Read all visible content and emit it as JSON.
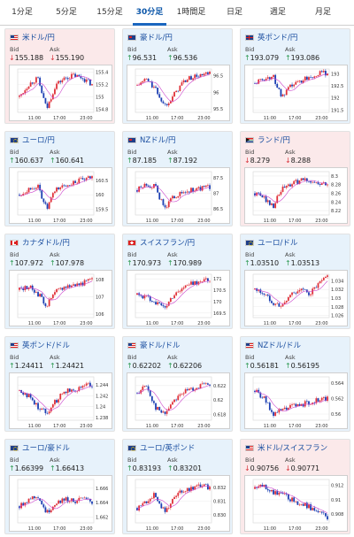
{
  "tabs": [
    {
      "label": "1分足",
      "active": false
    },
    {
      "label": "5分足",
      "active": false
    },
    {
      "label": "15分足",
      "active": false
    },
    {
      "label": "30分足",
      "active": true
    },
    {
      "label": "1時間足",
      "active": false
    },
    {
      "label": "日足",
      "active": false
    },
    {
      "label": "週足",
      "active": false
    },
    {
      "label": "月足",
      "active": false
    }
  ],
  "common": {
    "bid_label": "Bid",
    "ask_label": "Ask",
    "x_ticks": [
      "11:00",
      "17:00",
      "23:00"
    ]
  },
  "colors": {
    "up_bg": "#e7f2fb",
    "down_bg": "#fbe9ea",
    "up_arrow": "#2e9a52",
    "down_arrow": "#d9363e",
    "candle_up": "#e0313a",
    "candle_down": "#1c3fb3",
    "ma_line": "#cc44cc"
  },
  "cards": [
    {
      "name": "米ドル/円",
      "flag": "us",
      "dir": "down",
      "bid": "155.188",
      "ask": "155.190",
      "y_ticks": [
        "155.4",
        "155.2",
        "155",
        "154.8"
      ],
      "y_range": [
        154.75,
        155.45
      ],
      "chart_data": {
        "type": "candlestick",
        "trend": [
          155.0,
          155.2,
          155.3,
          154.8,
          155.2,
          155.3,
          155.35,
          155.3,
          155.2
        ]
      }
    },
    {
      "name": "豪ドル/円",
      "flag": "au",
      "dir": "up",
      "bid": "96.531",
      "ask": "96.536",
      "y_ticks": [
        "96.5",
        "96",
        "95.5"
      ],
      "y_range": [
        95.4,
        96.7
      ],
      "chart_data": {
        "type": "candlestick",
        "trend": [
          96.2,
          96.4,
          96.1,
          95.6,
          95.9,
          96.3,
          96.45,
          96.5,
          96.55
        ]
      }
    },
    {
      "name": "英ポンド/円",
      "flag": "gb",
      "dir": "up",
      "bid": "193.079",
      "ask": "193.086",
      "y_ticks": [
        "193",
        "192.5",
        "192",
        "191.5"
      ],
      "y_range": [
        191.4,
        193.2
      ],
      "chart_data": {
        "type": "candlestick",
        "trend": [
          192.6,
          192.8,
          192.9,
          192.0,
          192.5,
          192.7,
          192.9,
          193.0,
          193.05
        ]
      }
    },
    {
      "name": "ユーロ/円",
      "flag": "eu",
      "dir": "up",
      "bid": "160.637",
      "ask": "160.641",
      "y_ticks": [
        "160.5",
        "160",
        "159.5"
      ],
      "y_range": [
        159.3,
        160.8
      ],
      "chart_data": {
        "type": "candlestick",
        "trend": [
          160.0,
          160.2,
          160.3,
          159.5,
          160.2,
          160.3,
          160.45,
          160.5,
          160.6
        ]
      }
    },
    {
      "name": "NZドル/円",
      "flag": "nz",
      "dir": "up",
      "bid": "87.185",
      "ask": "87.192",
      "y_ticks": [
        "87.5",
        "87",
        "86.5"
      ],
      "y_range": [
        86.3,
        87.7
      ],
      "chart_data": {
        "type": "candlestick",
        "trend": [
          87.1,
          87.3,
          87.2,
          86.5,
          86.9,
          87.0,
          87.1,
          87.15,
          87.2
        ]
      }
    },
    {
      "name": "ランド/円",
      "flag": "za",
      "dir": "down",
      "bid": "8.279",
      "ask": "8.288",
      "y_ticks": [
        "8.3",
        "8.28",
        "8.26",
        "8.24",
        "8.22"
      ],
      "y_range": [
        8.21,
        8.31
      ],
      "chart_data": {
        "type": "candlestick",
        "trend": [
          8.26,
          8.25,
          8.23,
          8.27,
          8.28,
          8.29,
          8.29,
          8.28,
          8.28
        ]
      }
    },
    {
      "name": "カナダドル/円",
      "flag": "ca",
      "dir": "up",
      "bid": "107.972",
      "ask": "107.978",
      "y_ticks": [
        "108",
        "107",
        "106"
      ],
      "y_range": [
        105.8,
        108.3
      ],
      "chart_data": {
        "type": "candlestick",
        "trend": [
          107.4,
          107.6,
          107.2,
          106.5,
          107.3,
          107.6,
          107.7,
          107.8,
          107.95
        ]
      }
    },
    {
      "name": "スイスフラン/円",
      "flag": "ch",
      "dir": "up",
      "bid": "170.973",
      "ask": "170.989",
      "y_ticks": [
        "171",
        "170.5",
        "170",
        "169.5"
      ],
      "y_range": [
        169.3,
        171.2
      ],
      "chart_data": {
        "type": "candlestick",
        "trend": [
          170.3,
          170.2,
          170.0,
          169.7,
          170.3,
          170.6,
          170.8,
          170.9,
          170.95
        ]
      }
    },
    {
      "name": "ユーロ/ドル",
      "flag": "eu",
      "dir": "up",
      "bid": "1.03510",
      "ask": "1.03513",
      "y_ticks": [
        "1.034",
        "1.032",
        "1.03",
        "1.028",
        "1.026"
      ],
      "y_range": [
        1.0255,
        1.0355
      ],
      "chart_data": {
        "type": "candlestick",
        "trend": [
          1.032,
          1.031,
          1.029,
          1.028,
          1.031,
          1.032,
          1.031,
          1.033,
          1.035
        ]
      }
    },
    {
      "name": "英ポンド/ドル",
      "flag": "us",
      "dir": "up",
      "bid": "1.24411",
      "ask": "1.24421",
      "y_ticks": [
        "1.244",
        "1.242",
        "1.24",
        "1.238"
      ],
      "y_range": [
        1.2375,
        1.2455
      ],
      "chart_data": {
        "type": "candlestick",
        "trend": [
          1.243,
          1.242,
          1.24,
          1.239,
          1.241,
          1.243,
          1.243,
          1.244,
          1.244
        ]
      }
    },
    {
      "name": "豪ドル/ドル",
      "flag": "us",
      "dir": "up",
      "bid": "0.62202",
      "ask": "0.62206",
      "y_ticks": [
        "0.622",
        "0.62",
        "0.618"
      ],
      "y_range": [
        0.6172,
        0.6232
      ],
      "chart_data": {
        "type": "candlestick",
        "trend": [
          0.621,
          0.622,
          0.619,
          0.618,
          0.62,
          0.621,
          0.6215,
          0.622,
          0.622
        ]
      }
    },
    {
      "name": "NZドル/ドル",
      "flag": "us",
      "dir": "up",
      "bid": "0.56181",
      "ask": "0.56195",
      "y_ticks": [
        "0.564",
        "0.562",
        "0.56"
      ],
      "y_range": [
        0.5592,
        0.5648
      ],
      "chart_data": {
        "type": "candlestick",
        "trend": [
          0.563,
          0.562,
          0.56,
          0.5605,
          0.561,
          0.5612,
          0.5615,
          0.5618,
          0.562
        ]
      }
    },
    {
      "name": "ユーロ/豪ドル",
      "flag": "eu",
      "dir": "up",
      "bid": "1.66399",
      "ask": "1.66413",
      "y_ticks": [
        "1.666",
        "1.664",
        "1.662"
      ],
      "y_range": [
        1.6612,
        1.6672
      ],
      "chart_data": {
        "type": "candlestick",
        "trend": [
          1.6635,
          1.6645,
          1.665,
          1.6625,
          1.664,
          1.6645,
          1.6642,
          1.6645,
          1.664
        ]
      }
    },
    {
      "name": "ユーロ/英ポンド",
      "flag": "eu",
      "dir": "up",
      "bid": "0.83193",
      "ask": "0.83201",
      "y_ticks": [
        "0.832",
        "0.831",
        "0.830"
      ],
      "y_range": [
        0.8294,
        0.8326
      ],
      "chart_data": {
        "type": "candlestick",
        "trend": [
          0.8305,
          0.831,
          0.8315,
          0.8302,
          0.8312,
          0.8318,
          0.832,
          0.8322,
          0.832
        ]
      }
    },
    {
      "name": "米ドル/スイスフラン",
      "flag": "us",
      "dir": "down",
      "bid": "0.90756",
      "ask": "0.90771",
      "y_ticks": [
        "0.912",
        "0.91",
        "0.908"
      ],
      "y_range": [
        0.9068,
        0.9128
      ],
      "chart_data": {
        "type": "candlestick",
        "trend": [
          0.9115,
          0.912,
          0.911,
          0.9108,
          0.91,
          0.9095,
          0.909,
          0.9082,
          0.9076
        ]
      }
    }
  ]
}
